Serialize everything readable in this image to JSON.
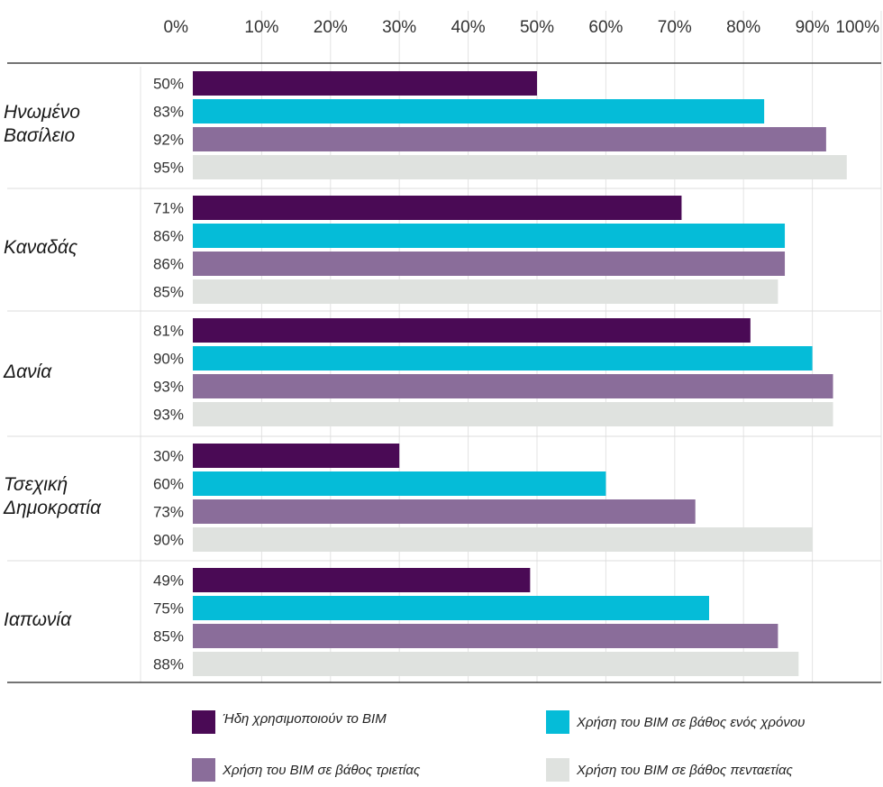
{
  "chart_data": {
    "type": "bar",
    "orientation": "horizontal",
    "x_ticks": [
      "0%",
      "10%",
      "20%",
      "30%",
      "40%",
      "50%",
      "60%",
      "70%",
      "80%",
      "90%",
      "100%"
    ],
    "xlim": [
      0,
      100
    ],
    "grid": true,
    "legend_position": "bottom",
    "groups": [
      {
        "label_lines": [
          "Ηνωμένο",
          "Βασίλειο"
        ],
        "values": [
          50,
          83,
          92,
          95
        ],
        "labels": [
          "50%",
          "83%",
          "92%",
          "95%"
        ]
      },
      {
        "label_lines": [
          "Καναδάς"
        ],
        "values": [
          71,
          86,
          86,
          85
        ],
        "labels": [
          "71%",
          "86%",
          "86%",
          "85%"
        ]
      },
      {
        "label_lines": [
          "Δανία"
        ],
        "values": [
          81,
          90,
          93,
          93
        ],
        "labels": [
          "81%",
          "90%",
          "93%",
          "93%"
        ]
      },
      {
        "label_lines": [
          "Τσεχική",
          "Δημοκρατία"
        ],
        "values": [
          30,
          60,
          73,
          90
        ],
        "labels": [
          "30%",
          "60%",
          "73%",
          "90%"
        ]
      },
      {
        "label_lines": [
          "Ιαπωνία"
        ],
        "values": [
          49,
          75,
          85,
          88
        ],
        "labels": [
          "49%",
          "75%",
          "85%",
          "88%"
        ]
      }
    ],
    "series": [
      {
        "name": "Ήδη χρησιμοποιούν το BIM",
        "color": "#4a0a55"
      },
      {
        "name": "Χρήση του BIM σε βάθος ενός χρόνου",
        "color": "#05bcd8"
      },
      {
        "name": "Χρήση του BIM σε βάθος τριετίας",
        "color": "#8a6d9a"
      },
      {
        "name": "Χρήση του BIM σε βάθος πενταετίας",
        "color": "#dfe2df"
      }
    ]
  }
}
